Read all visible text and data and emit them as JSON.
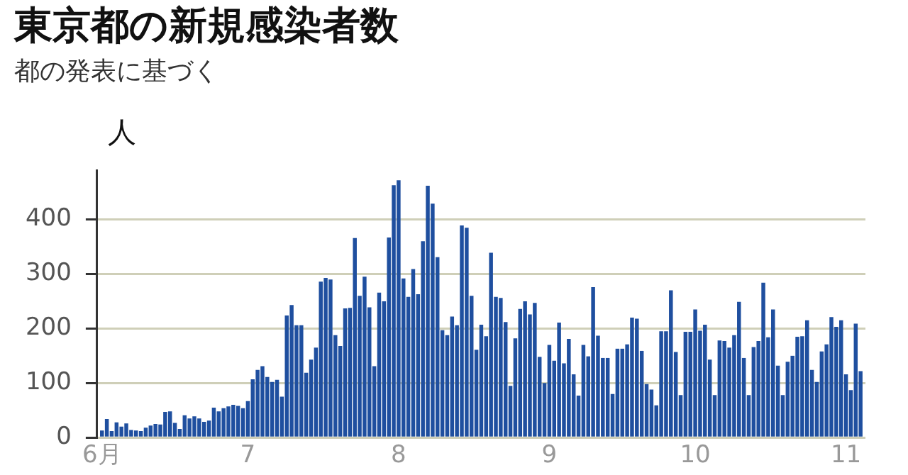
{
  "chart_data": {
    "type": "bar",
    "title": "東京都の新規感染者数",
    "subtitle": "都の発表に基づく",
    "ylabel": "人",
    "x": [
      "--06-01",
      "--06-02",
      "--06-03",
      "--06-04",
      "--06-05",
      "--06-06",
      "--06-07",
      "--06-08",
      "--06-09",
      "--06-10",
      "--06-11",
      "--06-12",
      "--06-13",
      "--06-14",
      "--06-15",
      "--06-16",
      "--06-17",
      "--06-18",
      "--06-19",
      "--06-20",
      "--06-21",
      "--06-22",
      "--06-23",
      "--06-24",
      "--06-25",
      "--06-26",
      "--06-27",
      "--06-28",
      "--06-29",
      "--06-30",
      "--07-01",
      "--07-02",
      "--07-03",
      "--07-04",
      "--07-05",
      "--07-06",
      "--07-07",
      "--07-08",
      "--07-09",
      "--07-10",
      "--07-11",
      "--07-12",
      "--07-13",
      "--07-14",
      "--07-15",
      "--07-16",
      "--07-17",
      "--07-18",
      "--07-19",
      "--07-20",
      "--07-21",
      "--07-22",
      "--07-23",
      "--07-24",
      "--07-25",
      "--07-26",
      "--07-27",
      "--07-28",
      "--07-29",
      "--07-30",
      "--07-31",
      "--08-01",
      "--08-02",
      "--08-03",
      "--08-04",
      "--08-05",
      "--08-06",
      "--08-07",
      "--08-08",
      "--08-09",
      "--08-10",
      "--08-11",
      "--08-12",
      "--08-13",
      "--08-14",
      "--08-15",
      "--08-16",
      "--08-17",
      "--08-18",
      "--08-19",
      "--08-20",
      "--08-21",
      "--08-22",
      "--08-23",
      "--08-24",
      "--08-25",
      "--08-26",
      "--08-27",
      "--08-28",
      "--08-29",
      "--08-30",
      "--08-31",
      "--09-01",
      "--09-02",
      "--09-03",
      "--09-04",
      "--09-05",
      "--09-06",
      "--09-07",
      "--09-08",
      "--09-09",
      "--09-10",
      "--09-11",
      "--09-12",
      "--09-13",
      "--09-14",
      "--09-15",
      "--09-16",
      "--09-17",
      "--09-18",
      "--09-19",
      "--09-20",
      "--09-21",
      "--09-22",
      "--09-23",
      "--09-24",
      "--09-25",
      "--09-26",
      "--09-27",
      "--09-28",
      "--09-29",
      "--09-30",
      "--10-01",
      "--10-02",
      "--10-03",
      "--10-04",
      "--10-05",
      "--10-06",
      "--10-07",
      "--10-08",
      "--10-09",
      "--10-10",
      "--10-11",
      "--10-12",
      "--10-13",
      "--10-14",
      "--10-15",
      "--10-16",
      "--10-17",
      "--10-18",
      "--10-19",
      "--10-20",
      "--10-21",
      "--10-22",
      "--10-23",
      "--10-24",
      "--10-25",
      "--10-26",
      "--10-27",
      "--10-28",
      "--10-29",
      "--10-30",
      "--10-31",
      "--11-01",
      "--11-02",
      "--11-03",
      "--11-04"
    ],
    "values": [
      13,
      34,
      12,
      28,
      20,
      26,
      14,
      13,
      12,
      18,
      22,
      25,
      24,
      47,
      48,
      27,
      16,
      41,
      35,
      39,
      35,
      29,
      31,
      55,
      48,
      54,
      57,
      60,
      58,
      54,
      67,
      107,
      124,
      131,
      111,
      102,
      106,
      75,
      224,
      243,
      206,
      206,
      119,
      143,
      165,
      286,
      293,
      290,
      188,
      168,
      237,
      238,
      366,
      260,
      295,
      239,
      131,
      266,
      250,
      367,
      463,
      472,
      292,
      258,
      309,
      263,
      360,
      462,
      429,
      331,
      197,
      188,
      222,
      206,
      389,
      385,
      260,
      161,
      207,
      186,
      339,
      258,
      256,
      212,
      95,
      182,
      236,
      250,
      226,
      247,
      148,
      100,
      170,
      141,
      211,
      136,
      181,
      116,
      77,
      170,
      149,
      276,
      187,
      146,
      146,
      80,
      163,
      163,
      171,
      220,
      218,
      159,
      98,
      88,
      59,
      195,
      195,
      270,
      157,
      78,
      194,
      194,
      235,
      196,
      207,
      143,
      78,
      178,
      177,
      165,
      188,
      249,
      146,
      78,
      166,
      177,
      284,
      184,
      235,
      132,
      78,
      139,
      150,
      185,
      186,
      215,
      124,
      102,
      158,
      171,
      221,
      203,
      215,
      116,
      87,
      209,
      122
    ],
    "color": "#1f4f9f",
    "xlim": [
      "--05-31",
      "--11-05"
    ],
    "xticks": [
      {
        "value": "--06-01",
        "label": "6月"
      },
      {
        "value": "--07-01",
        "label": "7"
      },
      {
        "value": "--08-01",
        "label": "8"
      },
      {
        "value": "--09-01",
        "label": "9"
      },
      {
        "value": "--10-01",
        "label": "10"
      },
      {
        "value": "--11-01",
        "label": "11"
      }
    ],
    "ylim": [
      0,
      490
    ],
    "yticks": [
      0,
      100,
      200,
      300,
      400
    ],
    "grid": "y",
    "legend": false
  }
}
